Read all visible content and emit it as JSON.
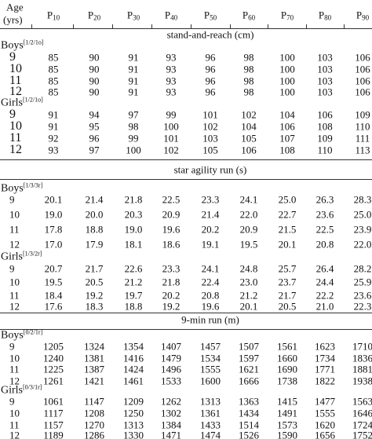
{
  "header": {
    "age_line1": "Age",
    "age_line2": "(yrs)",
    "columns": [
      {
        "base": "P",
        "sub": "10"
      },
      {
        "base": "P",
        "sub": "20"
      },
      {
        "base": "P",
        "sub": "30"
      },
      {
        "base": "P",
        "sub": "40"
      },
      {
        "base": "P",
        "sub": "50"
      },
      {
        "base": "P",
        "sub": "60"
      },
      {
        "base": "P",
        "sub": "70"
      },
      {
        "base": "P",
        "sub": "80"
      },
      {
        "base": "P",
        "sub": "90"
      }
    ]
  },
  "sections": [
    {
      "title": "stand-and-reach (cm)",
      "groups": [
        {
          "label": "Boys",
          "code": "[1/2/1o]",
          "rows": [
            {
              "age": "9",
              "values": [
                "85",
                "90",
                "91",
                "93",
                "96",
                "98",
                "100",
                "103",
                "106"
              ]
            },
            {
              "age": "10",
              "values": [
                "85",
                "90",
                "91",
                "93",
                "96",
                "98",
                "100",
                "103",
                "106"
              ]
            },
            {
              "age": "11",
              "values": [
                "85",
                "90",
                "91",
                "93",
                "96",
                "98",
                "100",
                "103",
                "106"
              ]
            },
            {
              "age": "12",
              "values": [
                "85",
                "90",
                "91",
                "93",
                "96",
                "98",
                "100",
                "103",
                "106"
              ]
            }
          ]
        },
        {
          "label": "Girls",
          "code": "[1/2/1o]",
          "rows": [
            {
              "age": "9",
              "values": [
                "91",
                "94",
                "97",
                "99",
                "101",
                "102",
                "104",
                "106",
                "109"
              ]
            },
            {
              "age": "10",
              "values": [
                "91",
                "95",
                "98",
                "100",
                "102",
                "104",
                "106",
                "108",
                "110"
              ]
            },
            {
              "age": "11",
              "values": [
                "92",
                "96",
                "99",
                "101",
                "103",
                "105",
                "107",
                "109",
                "111"
              ]
            },
            {
              "age": "12",
              "values": [
                "93",
                "97",
                "100",
                "102",
                "105",
                "106",
                "108",
                "110",
                "113"
              ]
            }
          ]
        }
      ]
    },
    {
      "title": "star agility run (s)",
      "groups": [
        {
          "label": "Boys",
          "code": "[1/3/3r]",
          "rows": [
            {
              "age": "9",
              "values": [
                "20.1",
                "21.4",
                "21.8",
                "22.5",
                "23.3",
                "24.1",
                "25.0",
                "26.3",
                "28.3"
              ]
            },
            {
              "age": "10",
              "values": [
                "19.0",
                "20.0",
                "20.3",
                "20.9",
                "21.4",
                "22.0",
                "22.7",
                "23.6",
                "25.0"
              ]
            },
            {
              "age": "11",
              "values": [
                "17.8",
                "18.8",
                "19.0",
                "19.6",
                "20.2",
                "20.9",
                "21.5",
                "22.5",
                "23.9"
              ]
            },
            {
              "age": "12",
              "values": [
                "17.0",
                "17.9",
                "18.1",
                "18.6",
                "19.1",
                "19.5",
                "20.1",
                "20.8",
                "22.0"
              ]
            }
          ]
        },
        {
          "label": "Girls",
          "code": "[1/3/2r]",
          "rows": [
            {
              "age": "9",
              "values": [
                "20.7",
                "21.7",
                "22.6",
                "23.3",
                "24.1",
                "24.8",
                "25.7",
                "26.4",
                "28.2"
              ]
            },
            {
              "age": "10",
              "values": [
                "19.5",
                "20.5",
                "21.2",
                "21.8",
                "22.4",
                "23.0",
                "23.7",
                "24.4",
                "25.9"
              ]
            },
            {
              "age": "11",
              "values": [
                "18.4",
                "19.2",
                "19.7",
                "20.2",
                "20.8",
                "21.2",
                "21.7",
                "22.2",
                "23.6"
              ]
            },
            {
              "age": "12",
              "values": [
                "17.6",
                "18.3",
                "18.8",
                "19.2",
                "19.6",
                "20.1",
                "20.5",
                "21.0",
                "22.3"
              ]
            }
          ]
        }
      ]
    },
    {
      "title": "9-min run (m)",
      "groups": [
        {
          "label": "Boys",
          "code": "[0/2/1r]",
          "rows": [
            {
              "age": "9",
              "values": [
                "1205",
                "1324",
                "1354",
                "1407",
                "1457",
                "1507",
                "1561",
                "1623",
                "1710"
              ]
            },
            {
              "age": "10",
              "values": [
                "1240",
                "1381",
                "1416",
                "1479",
                "1534",
                "1597",
                "1660",
                "1734",
                "1836"
              ]
            },
            {
              "age": "11",
              "values": [
                "1225",
                "1387",
                "1424",
                "1496",
                "1555",
                "1621",
                "1690",
                "1771",
                "1881"
              ]
            },
            {
              "age": "12",
              "values": [
                "1261",
                "1421",
                "1461",
                "1533",
                "1600",
                "1666",
                "1738",
                "1822",
                "1938"
              ]
            }
          ]
        },
        {
          "label": "Girls",
          "code": "[0/3/1r]",
          "rows": [
            {
              "age": "9",
              "values": [
                "1061",
                "1147",
                "1209",
                "1262",
                "1313",
                "1363",
                "1415",
                "1477",
                "1563"
              ]
            },
            {
              "age": "10",
              "values": [
                "1117",
                "1208",
                "1250",
                "1302",
                "1361",
                "1434",
                "1491",
                "1555",
                "1646"
              ]
            },
            {
              "age": "11",
              "values": [
                "1157",
                "1270",
                "1313",
                "1384",
                "1433",
                "1514",
                "1573",
                "1620",
                "1724"
              ]
            },
            {
              "age": "12",
              "values": [
                "1189",
                "1286",
                "1330",
                "1471",
                "1474",
                "1526",
                "1590",
                "1656",
                "1752"
              ]
            }
          ]
        }
      ]
    }
  ]
}
